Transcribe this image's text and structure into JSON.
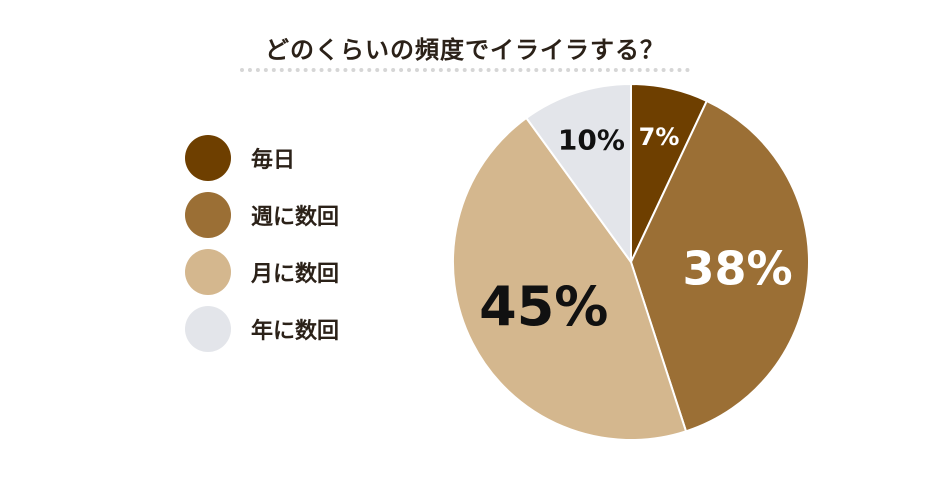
{
  "title": "どのくらいの頻度でイライラする？",
  "chart_data": {
    "type": "pie",
    "title": "どのくらいの頻度でイライラする？",
    "start": "top",
    "direction": "clockwise",
    "legend_position": "left",
    "slices": [
      {
        "label": "毎日",
        "value": 7,
        "display": "7%",
        "color": "#6e3f00",
        "text_color": "#ffffff"
      },
      {
        "label": "週に数回",
        "value": 38,
        "display": "38%",
        "color": "#9b6f35",
        "text_color": "#ffffff"
      },
      {
        "label": "月に数回",
        "value": 45,
        "display": "45%",
        "color": "#d4b78e",
        "text_color": "#111111"
      },
      {
        "label": "年に数回",
        "value": 10,
        "display": "10%",
        "color": "#e3e5ea",
        "text_color": "#111111"
      }
    ]
  }
}
